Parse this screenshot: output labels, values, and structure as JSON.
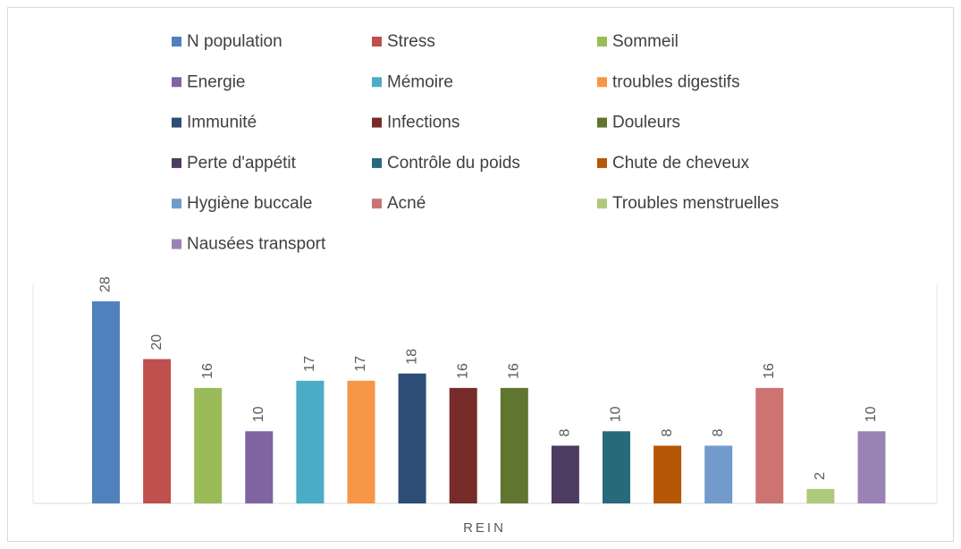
{
  "chart_data": {
    "type": "bar",
    "categories": [
      "REIN"
    ],
    "series": [
      {
        "name": "N population",
        "color": "#4f81bd",
        "values": [
          28
        ]
      },
      {
        "name": "Stress",
        "color": "#c0504d",
        "values": [
          20
        ]
      },
      {
        "name": "Sommeil",
        "color": "#9bbb59",
        "values": [
          16
        ]
      },
      {
        "name": "Energie",
        "color": "#8064a2",
        "values": [
          10
        ]
      },
      {
        "name": "Mémoire",
        "color": "#4bacc6",
        "values": [
          17
        ]
      },
      {
        "name": "troubles digestifs",
        "color": "#f79646",
        "values": [
          17
        ]
      },
      {
        "name": "Immunité",
        "color": "#2c4d75",
        "values": [
          18
        ]
      },
      {
        "name": "Infections",
        "color": "#772c2a",
        "values": [
          16
        ]
      },
      {
        "name": "Douleurs",
        "color": "#5f7530",
        "values": [
          16
        ]
      },
      {
        "name": "Perte d'appétit",
        "color": "#4d3b62",
        "values": [
          8
        ]
      },
      {
        "name": "Contrôle du poids",
        "color": "#276a7c",
        "values": [
          10
        ]
      },
      {
        "name": "Chute de cheveux",
        "color": "#b65708",
        "values": [
          8
        ]
      },
      {
        "name": "Hygiène buccale",
        "color": "#729aca",
        "values": [
          8
        ]
      },
      {
        "name": "Acné",
        "color": "#cd7371",
        "values": [
          16
        ]
      },
      {
        "name": "Troubles menstruelles",
        "color": "#afc97a",
        "values": [
          2
        ]
      },
      {
        "name": "Nausées transport",
        "color": "#9983b5",
        "values": [
          10
        ]
      }
    ]
  }
}
